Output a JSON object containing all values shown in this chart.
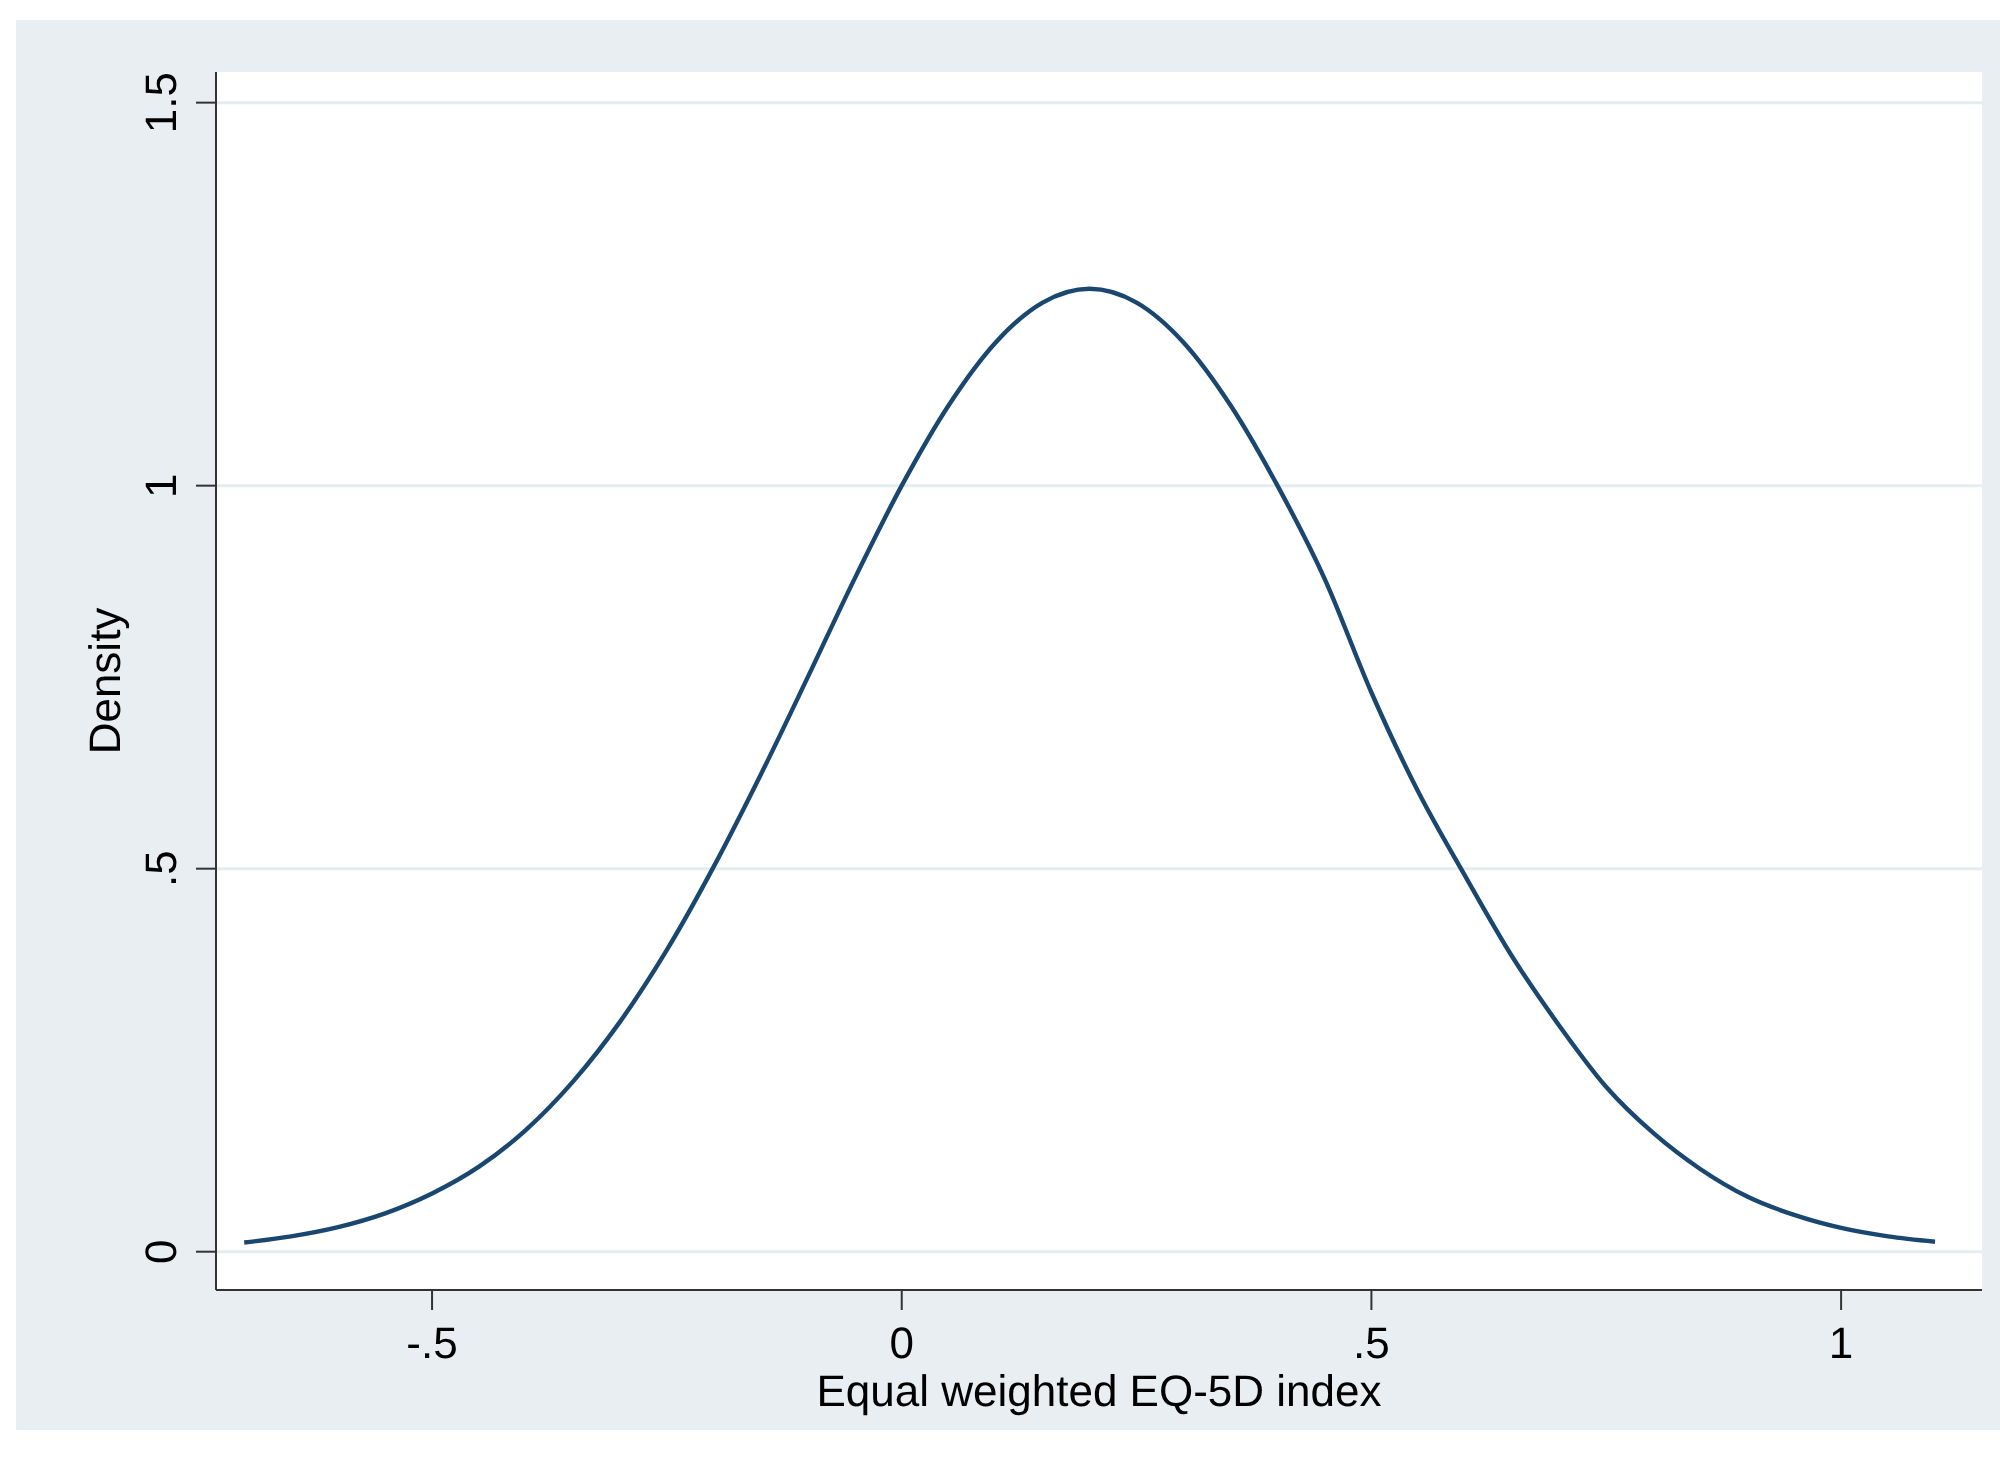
{
  "chart_data": {
    "type": "line",
    "xlabel": "Equal weighted EQ-5D index",
    "ylabel": "Density",
    "x": [
      -0.7,
      -0.65,
      -0.6,
      -0.55,
      -0.5,
      -0.45,
      -0.4,
      -0.35,
      -0.3,
      -0.25,
      -0.2,
      -0.15,
      -0.1,
      -0.05,
      0,
      0.05,
      0.1,
      0.15,
      0.2,
      0.25,
      0.3,
      0.35,
      0.4,
      0.45,
      0.5,
      0.55,
      0.6,
      0.65,
      0.7,
      0.75,
      0.8,
      0.85,
      0.9,
      0.95,
      1,
      1.05,
      1.1
    ],
    "series": [
      {
        "color": "#1a476f",
        "values": [
          0.012,
          0.02,
          0.032,
          0.05,
          0.076,
          0.111,
          0.159,
          0.222,
          0.3,
          0.394,
          0.503,
          0.623,
          0.75,
          0.879,
          1.0,
          1.105,
          1.187,
          1.239,
          1.257,
          1.239,
          1.187,
          1.105,
          1.0,
          0.879,
          0.73,
          0.6,
          0.49,
          0.385,
          0.295,
          0.215,
          0.155,
          0.108,
          0.072,
          0.048,
          0.031,
          0.02,
          0.013
        ]
      }
    ],
    "xlim": [
      -0.73,
      1.15
    ],
    "ylim": [
      -0.05,
      1.54
    ],
    "xticks": [
      {
        "value": -0.5,
        "label": "-.5"
      },
      0,
      {
        "value": 0.5,
        "label": ".5"
      },
      1
    ],
    "yticks": [
      0,
      {
        "value": 0.5,
        "label": ".5"
      },
      1,
      1.5
    ],
    "grid": "y",
    "marker": "none",
    "line_style": "solid"
  }
}
